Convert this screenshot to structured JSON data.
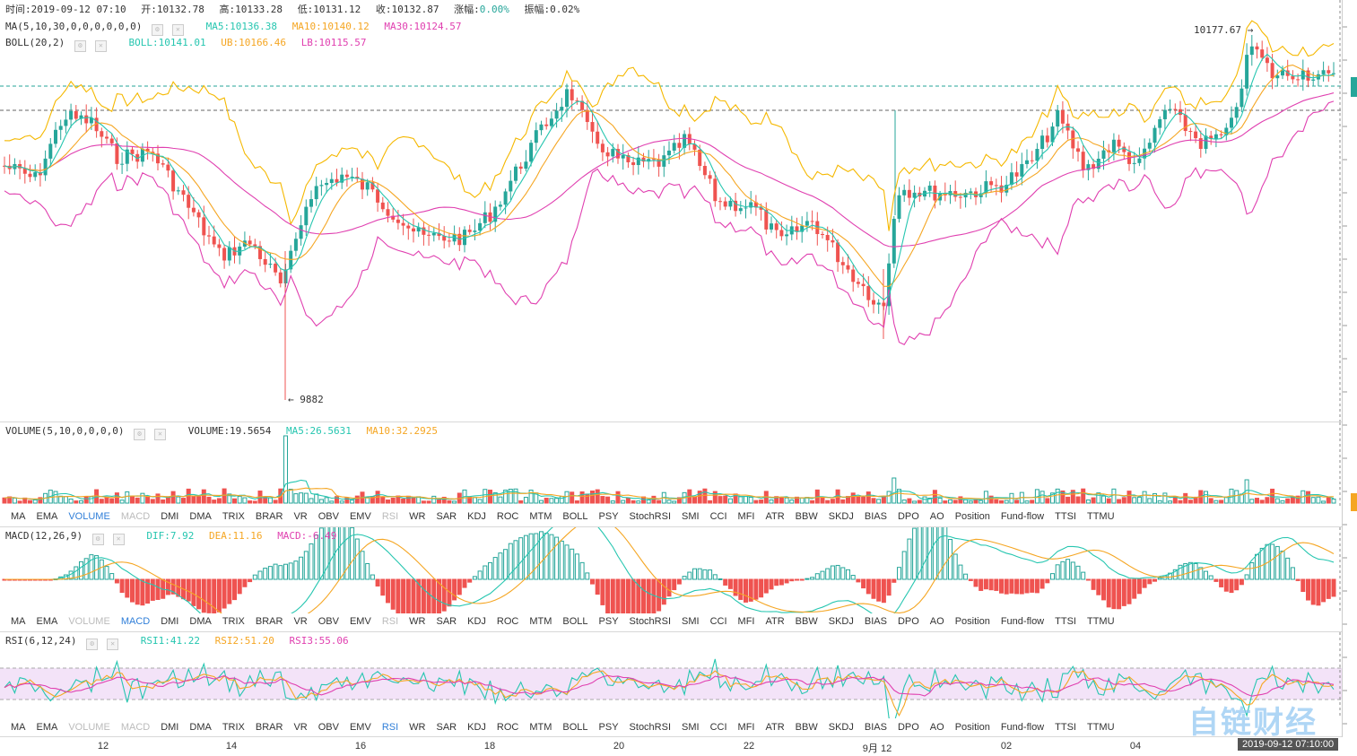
{
  "header": {
    "time_label": "时间:2019-09-12 07:10",
    "open_label": "开:10132.78",
    "high_label": "高:10133.28",
    "low_label": "低:10131.12",
    "close_label": "收:10132.87",
    "change_prefix": "涨幅:",
    "change_value": "0.00%",
    "amplitude_label": "振幅:0.02%"
  },
  "ma_row": {
    "name": "MA(5,10,30,0,0,0,0,0,0)",
    "ma5": "MA5:10136.38",
    "ma10": "MA10:10140.12",
    "ma30": "MA30:10124.57"
  },
  "boll_row": {
    "name": "BOLL(20,2)",
    "boll": "BOLL:10141.01",
    "ub": "UB:10166.46",
    "lb": "LB:10115.57"
  },
  "annotations": {
    "high": "10177.67 →",
    "low": "← 9882"
  },
  "volume_row": {
    "name": "VOLUME(5,10,0,0,0,0)",
    "volume": "VOLUME:19.5654",
    "ma5": "MA5:26.5631",
    "ma10": "MA10:32.2925"
  },
  "macd_row": {
    "name": "MACD(12,26,9)",
    "dif": "DIF:7.92",
    "dea": "DEA:11.16",
    "macd": "MACD:-6.49"
  },
  "rsi_row": {
    "name": "RSI(6,12,24)",
    "rsi1": "RSI1:41.22",
    "rsi2": "RSI2:51.20",
    "rsi3": "RSI3:55.06"
  },
  "tabs": [
    "MA",
    "EMA",
    "VOLUME",
    "MACD",
    "DMI",
    "DMA",
    "TRIX",
    "BRAR",
    "VR",
    "OBV",
    "EMV",
    "RSI",
    "WR",
    "SAR",
    "KDJ",
    "ROC",
    "MTM",
    "BOLL",
    "PSY",
    "StochRSI",
    "SMI",
    "CCI",
    "MFI",
    "ATR",
    "BBW",
    "SKDJ",
    "BIAS",
    "DPO",
    "AO",
    "Position",
    "Fund-flow",
    "TTSI",
    "TTMU"
  ],
  "tab_states": {
    "bar1": {
      "active": "VOLUME",
      "muted": [
        "MACD",
        "RSI"
      ]
    },
    "bar2": {
      "active": "MACD",
      "muted": [
        "VOLUME",
        "RSI"
      ]
    },
    "bar3": {
      "active": "RSI",
      "muted": [
        "VOLUME",
        "MACD"
      ]
    }
  },
  "x_axis": [
    "12",
    "14",
    "16",
    "18",
    "20",
    "22",
    "9月 12",
    "02",
    "04"
  ],
  "cursor_time": "2019-09-12 07:10:00",
  "watermark": "自链财经",
  "colors": {
    "up": "#26a69a",
    "down": "#ef5350",
    "ma5": "#26c6b0",
    "ma10": "#f5a623",
    "ma30": "#e040b0",
    "rsi_band": "#f3e3f8"
  },
  "chart_data": {
    "type": "candlestick",
    "series": [
      "close",
      "MA5",
      "MA10",
      "MA30",
      "UB",
      "LB",
      "VOLUME",
      "DIF",
      "DEA",
      "MACD",
      "RSI1",
      "RSI2",
      "RSI3"
    ],
    "visible_extremes": {
      "high": 10177.67,
      "low": 9882
    }
  }
}
